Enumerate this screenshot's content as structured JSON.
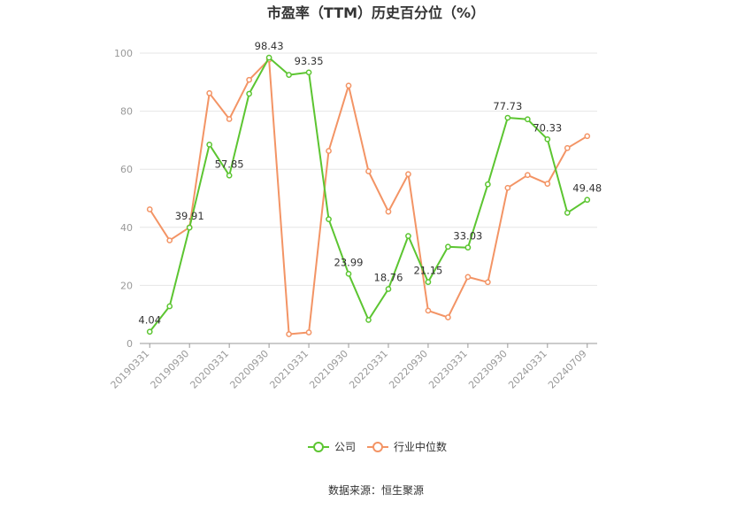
{
  "chart_data": {
    "type": "line",
    "title": "市盈率（TTM）历史百分位（%）",
    "ylim": [
      0,
      100
    ],
    "yticks": [
      0,
      20,
      40,
      60,
      80,
      100
    ],
    "grid": true,
    "legend_position": "bottom",
    "x": [
      "20190331",
      "20190630",
      "20190930",
      "20191231",
      "20200331",
      "20200630",
      "20200930",
      "20201231",
      "20210331",
      "20210630",
      "20210930",
      "20211231",
      "20220331",
      "20220630",
      "20220930",
      "20221231",
      "20230331",
      "20230630",
      "20230930",
      "20231231",
      "20240331",
      "20240630",
      "20240709"
    ],
    "x_tick_labels": [
      "20190331",
      "20190930",
      "20200331",
      "20200930",
      "20210331",
      "20210930",
      "20220331",
      "20220930",
      "20230331",
      "20230930",
      "20240331",
      "20240709"
    ],
    "series": [
      {
        "name": "公司",
        "color": "#5cc531",
        "values": [
          4.04,
          12.8,
          39.91,
          68.5,
          57.85,
          86.0,
          98.43,
          92.5,
          93.35,
          42.8,
          23.99,
          8.1,
          18.76,
          37.0,
          21.15,
          33.3,
          33.03,
          54.8,
          77.73,
          77.2,
          70.33,
          45.0,
          49.48
        ],
        "labels": {
          "0": "4.04",
          "2": "39.91",
          "4": "57.85",
          "6": "98.43",
          "8": "93.35",
          "10": "23.99",
          "12": "18.76",
          "14": "21.15",
          "16": "33.03",
          "18": "77.73",
          "20": "70.33",
          "22": "49.48"
        }
      },
      {
        "name": "行业中位数",
        "color": "#f39465",
        "values": [
          46.2,
          35.5,
          40.0,
          86.2,
          77.3,
          90.8,
          97.8,
          3.2,
          3.8,
          66.3,
          88.8,
          59.3,
          45.4,
          58.3,
          11.3,
          9.0,
          22.9,
          21.1,
          53.6,
          58.0,
          55.0,
          67.3,
          71.4
        ]
      }
    ]
  },
  "legend": [
    {
      "label": "公司",
      "color": "#5cc531"
    },
    {
      "label": "行业中位数",
      "color": "#f39465"
    }
  ],
  "source": "数据来源：恒生聚源"
}
